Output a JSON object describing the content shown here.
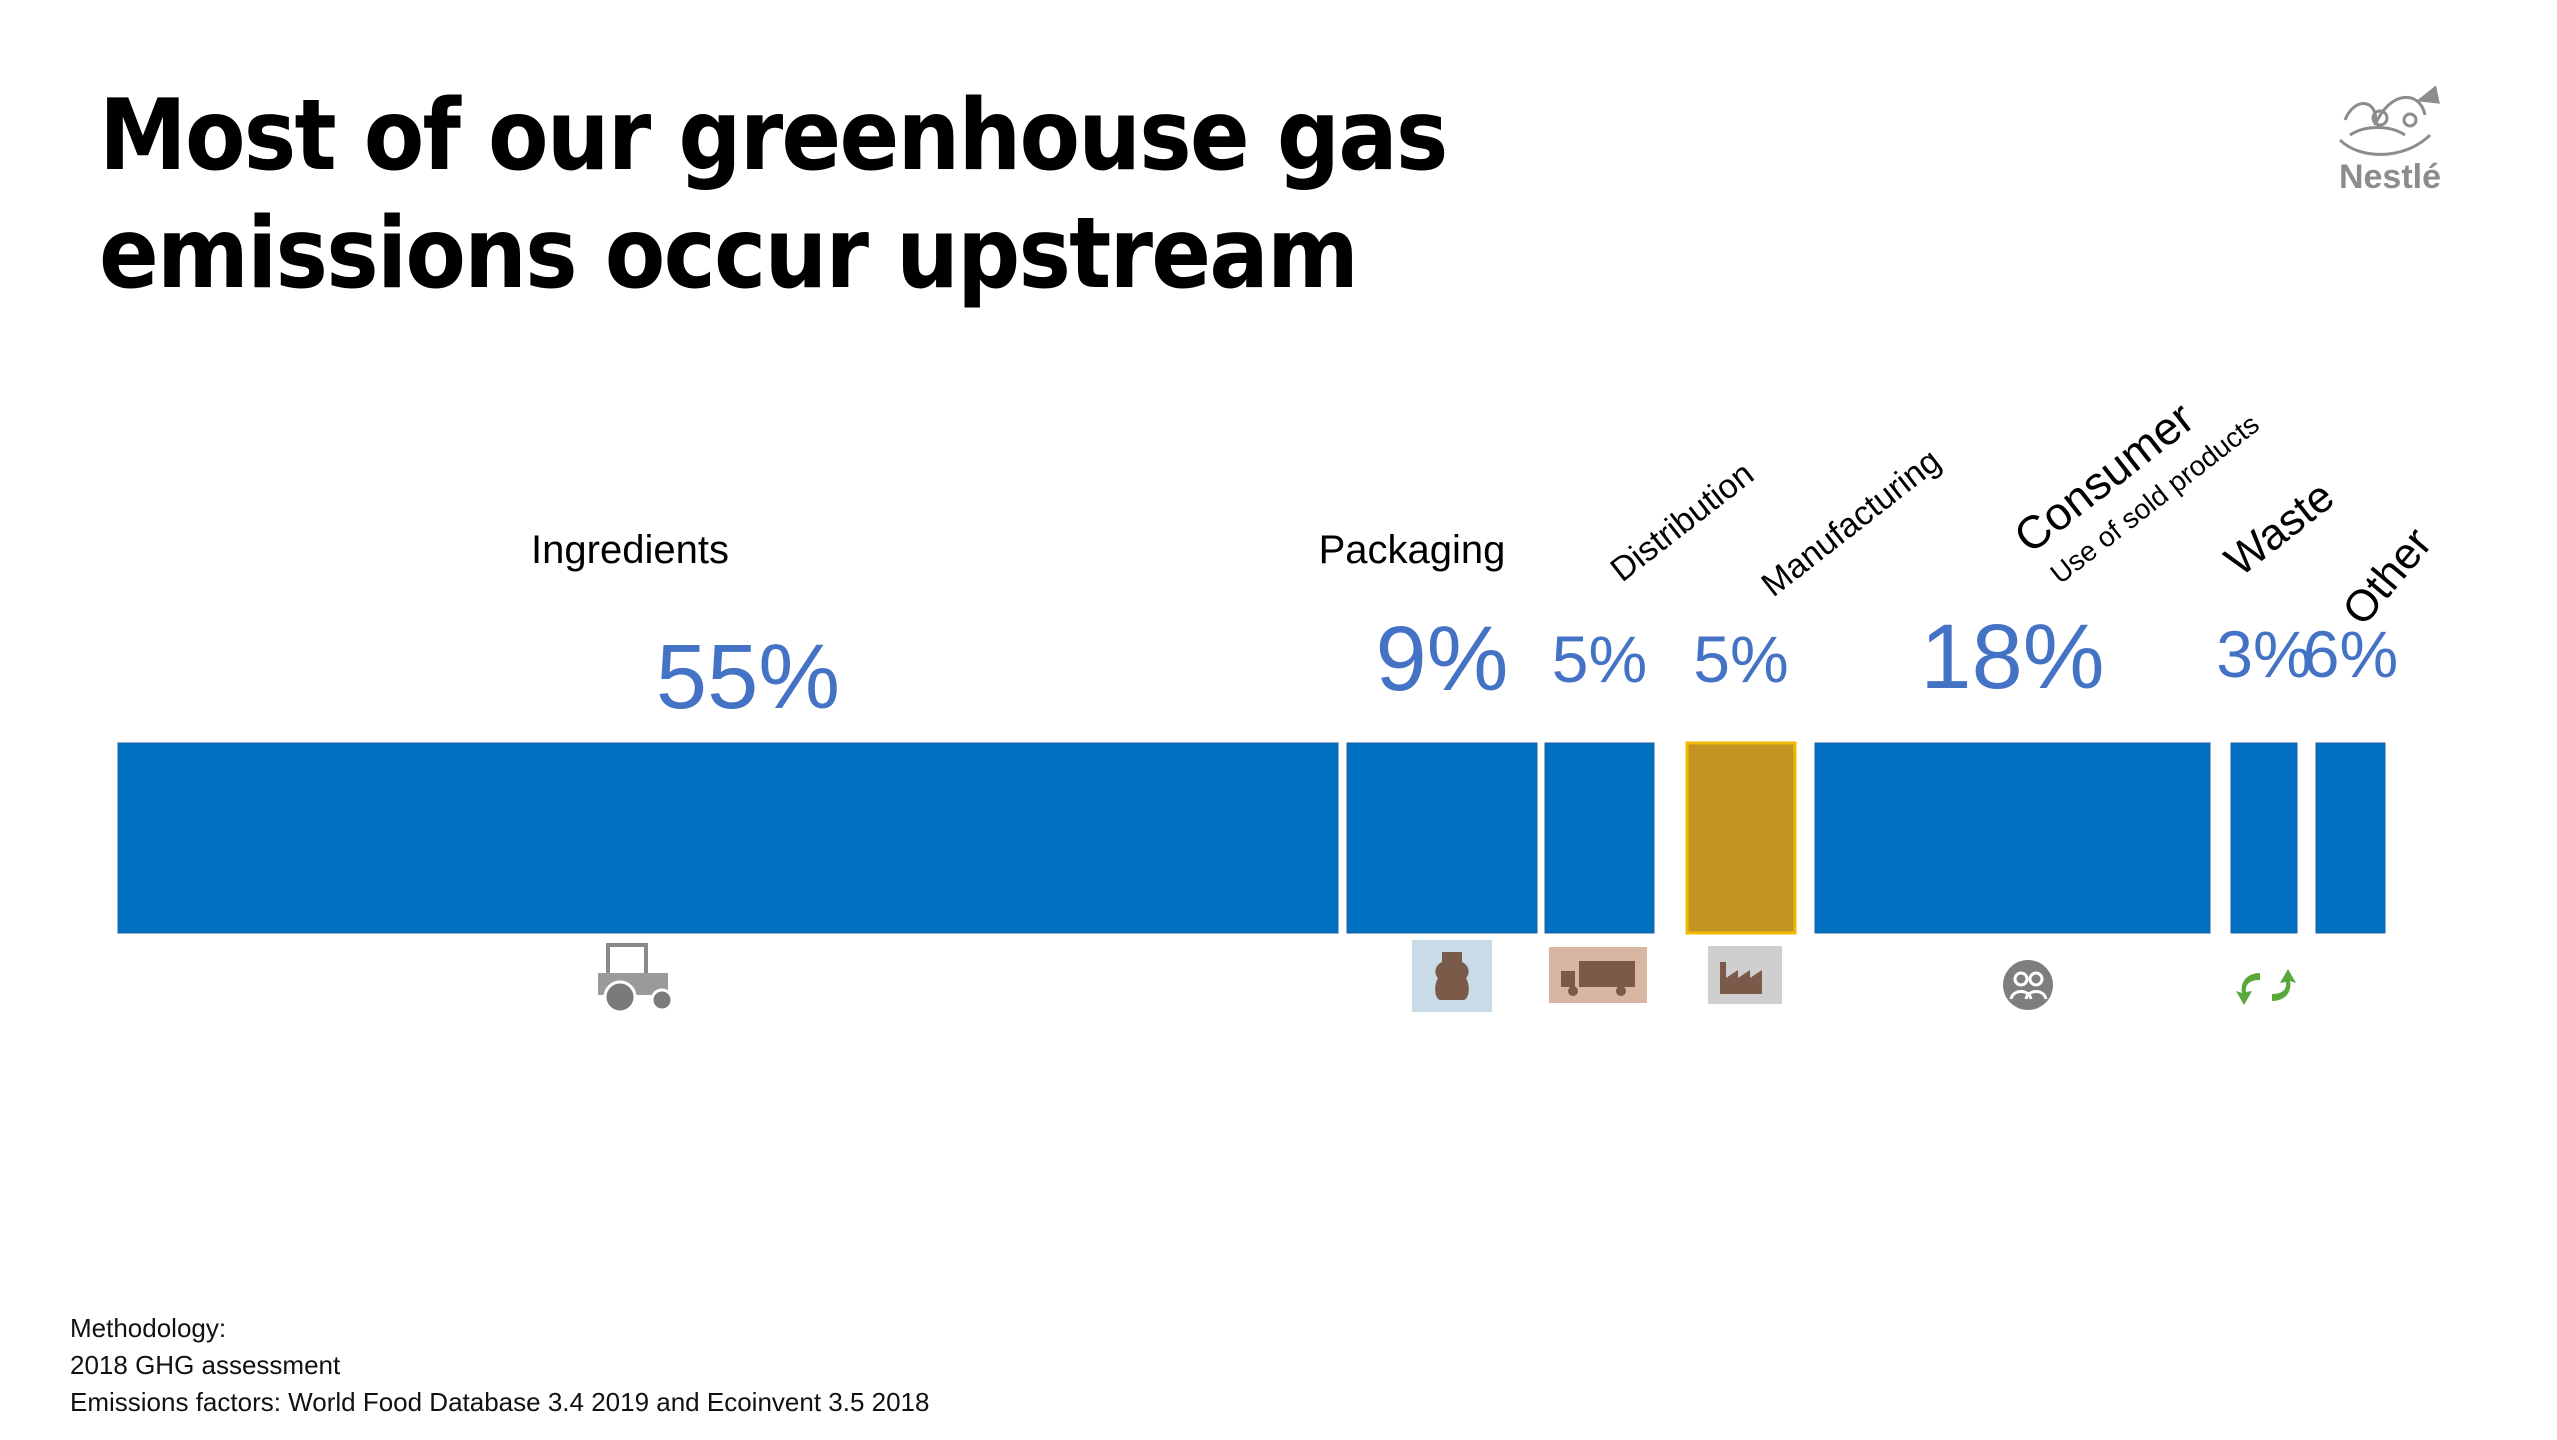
{
  "title": "Most of our greenhouse gas emissions occur upstream",
  "logo": {
    "text": "Nestlé",
    "icon": "nest-icon"
  },
  "colors": {
    "bar": "#0070C0",
    "highlight": "#C39424",
    "highlight_border": "#F2B800",
    "value_text": "#4472C4"
  },
  "chart_data": {
    "type": "bar",
    "orientation": "horizontal-stacked",
    "categories": [
      "Ingredients",
      "Packaging",
      "Distribution",
      "Manufacturing",
      "Consumer",
      "Waste",
      "Other"
    ],
    "sublabels": {
      "Consumer": "Use of sold products"
    },
    "values": [
      55,
      9,
      5,
      5,
      18,
      3,
      6
    ],
    "value_labels": [
      "55%",
      "9%",
      "5%",
      "5%",
      "18%",
      "3%",
      "6%"
    ],
    "highlighted": "Manufacturing",
    "icons": [
      "tractor-icon",
      "bottle-icon",
      "truck-icon",
      "factory-icon",
      "people-icon",
      "recycle-icon",
      ""
    ]
  },
  "footer": {
    "heading": "Methodology:",
    "line1": "2018 GHG assessment",
    "line2": "Emissions factors: World Food Database 3.4 2019 and Ecoinvent 3.5 2018"
  }
}
